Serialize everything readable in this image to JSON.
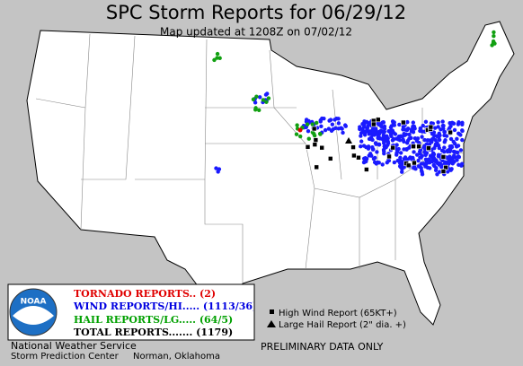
{
  "header": {
    "title": "SPC Storm Reports for 06/29/12",
    "subtitle": "Map updated at 1208Z on 07/02/12"
  },
  "legend": {
    "tornado": "TORNADO REPORTS.. (2)",
    "wind": "WIND REPORTS/HI..... (1113/36)",
    "hail": "HAIL REPORTS/LG..... (64/5)",
    "total": "TOTAL REPORTS....... (1179)",
    "logo": "NOAA"
  },
  "office": {
    "line1": "National Weather Service",
    "line2": "Storm Prediction Center",
    "location": "Norman, Oklahoma"
  },
  "key": {
    "high_wind": "High Wind Report (65KT+)",
    "large_hail": "Large Hail Report (2\" dia. +)"
  },
  "footer": {
    "note": "PRELIMINARY DATA ONLY"
  }
}
